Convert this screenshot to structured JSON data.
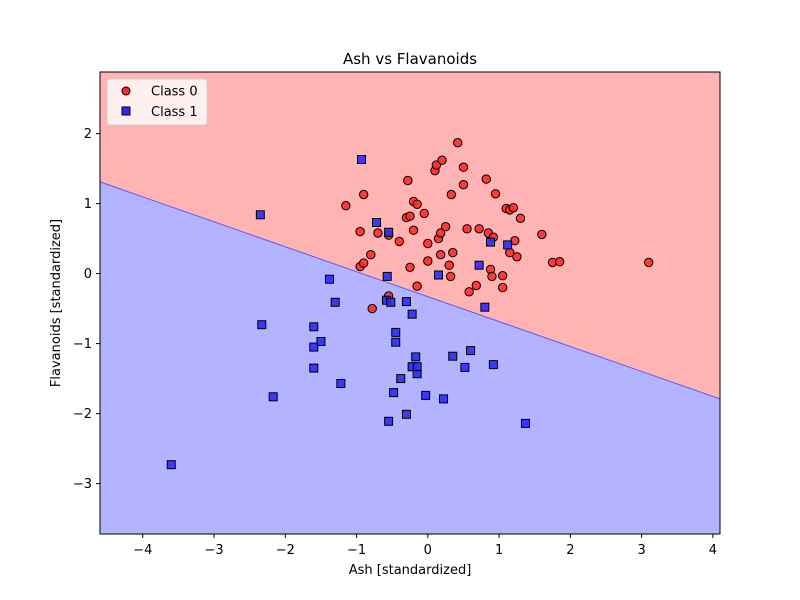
{
  "chart_data": {
    "type": "scatter",
    "title": "Ash vs Flavanoids",
    "xlabel": "Ash [standardized]",
    "ylabel": "Flavanoids [standardized]",
    "xlim": [
      -4.6,
      4.1
    ],
    "ylim": [
      -3.72,
      2.88
    ],
    "xticks": [
      -4,
      -3,
      -2,
      -1,
      0,
      1,
      2,
      3,
      4
    ],
    "yticks": [
      -3,
      -2,
      -1,
      0,
      1,
      2
    ],
    "xtick_labels": [
      "−4",
      "−3",
      "−2",
      "−1",
      "0",
      "1",
      "2",
      "3",
      "4"
    ],
    "ytick_labels": [
      "−3",
      "−2",
      "−1",
      "0",
      "1",
      "2"
    ],
    "grid": false,
    "legend_position": "top-left",
    "decision_boundary": {
      "points": [
        [
          -4.6,
          1.31
        ],
        [
          4.1,
          -1.79
        ]
      ],
      "region_above": "Class 0",
      "region_below": "Class 1",
      "region_above_color": "#ffb3b3",
      "region_below_color": "#b3b3ff",
      "line_color": "#5a5aff"
    },
    "series": [
      {
        "name": "Class 0",
        "marker": "circle",
        "color": "#ff2a2a",
        "points": [
          [
            -1.15,
            0.97
          ],
          [
            -0.9,
            1.13
          ],
          [
            -0.95,
            0.6
          ],
          [
            -0.95,
            0.1
          ],
          [
            -0.9,
            0.15
          ],
          [
            -0.8,
            0.27
          ],
          [
            -0.7,
            0.58
          ],
          [
            -0.78,
            -0.5
          ],
          [
            -0.55,
            -0.32
          ],
          [
            -0.55,
            0.55
          ],
          [
            -0.4,
            0.46
          ],
          [
            -0.3,
            0.8
          ],
          [
            -0.28,
            1.33
          ],
          [
            -0.25,
            0.82
          ],
          [
            -0.2,
            1.03
          ],
          [
            -0.15,
            0.99
          ],
          [
            -0.05,
            0.86
          ],
          [
            -0.2,
            0.62
          ],
          [
            -0.25,
            0.09
          ],
          [
            -0.15,
            -0.18
          ],
          [
            0.0,
            0.43
          ],
          [
            0.0,
            0.18
          ],
          [
            0.1,
            1.47
          ],
          [
            0.12,
            1.55
          ],
          [
            0.15,
            0.5
          ],
          [
            0.18,
            0.58
          ],
          [
            0.18,
            0.27
          ],
          [
            0.2,
            1.62
          ],
          [
            0.25,
            0.67
          ],
          [
            0.3,
            0.12
          ],
          [
            0.32,
            -0.04
          ],
          [
            0.33,
            1.13
          ],
          [
            0.35,
            0.3
          ],
          [
            0.42,
            1.87
          ],
          [
            0.5,
            1.52
          ],
          [
            0.5,
            1.27
          ],
          [
            0.55,
            0.64
          ],
          [
            0.58,
            -0.26
          ],
          [
            0.68,
            -0.17
          ],
          [
            0.72,
            0.64
          ],
          [
            0.82,
            1.35
          ],
          [
            0.85,
            0.58
          ],
          [
            0.88,
            0.06
          ],
          [
            0.9,
            -0.04
          ],
          [
            0.92,
            0.52
          ],
          [
            0.95,
            1.14
          ],
          [
            1.05,
            -0.03
          ],
          [
            1.05,
            -0.2
          ],
          [
            1.1,
            0.93
          ],
          [
            1.15,
            0.91
          ],
          [
            1.15,
            0.3
          ],
          [
            1.2,
            0.94
          ],
          [
            1.22,
            0.47
          ],
          [
            1.25,
            0.24
          ],
          [
            1.3,
            0.79
          ],
          [
            1.6,
            0.56
          ],
          [
            1.75,
            0.16
          ],
          [
            1.85,
            0.17
          ],
          [
            3.1,
            0.16
          ]
        ]
      },
      {
        "name": "Class 1",
        "marker": "square",
        "color": "#2a2aff",
        "points": [
          [
            -3.6,
            -2.73
          ],
          [
            -2.35,
            0.84
          ],
          [
            -2.33,
            -0.73
          ],
          [
            -2.17,
            -1.76
          ],
          [
            -1.6,
            -0.76
          ],
          [
            -1.6,
            -1.05
          ],
          [
            -1.6,
            -1.35
          ],
          [
            -1.5,
            -0.97
          ],
          [
            -1.38,
            -0.08
          ],
          [
            -1.3,
            -0.41
          ],
          [
            -1.22,
            -1.57
          ],
          [
            -0.93,
            1.63
          ],
          [
            -0.72,
            0.73
          ],
          [
            -0.58,
            -0.38
          ],
          [
            -0.57,
            -0.04
          ],
          [
            -0.55,
            0.59
          ],
          [
            -0.52,
            -0.41
          ],
          [
            -0.48,
            -1.7
          ],
          [
            -0.45,
            -0.84
          ],
          [
            -0.45,
            -0.98
          ],
          [
            -0.38,
            -1.5
          ],
          [
            -0.3,
            -0.4
          ],
          [
            -0.3,
            -2.01
          ],
          [
            -0.22,
            -0.58
          ],
          [
            -0.22,
            -1.33
          ],
          [
            -0.17,
            -1.19
          ],
          [
            -0.15,
            -1.43
          ],
          [
            -0.15,
            -1.33
          ],
          [
            -0.55,
            -2.11
          ],
          [
            -0.03,
            -1.74
          ],
          [
            0.15,
            -0.02
          ],
          [
            0.22,
            -1.79
          ],
          [
            0.35,
            -1.18
          ],
          [
            0.52,
            -1.34
          ],
          [
            0.6,
            -1.1
          ],
          [
            0.72,
            0.12
          ],
          [
            0.8,
            -0.48
          ],
          [
            0.88,
            0.45
          ],
          [
            0.92,
            -1.3
          ],
          [
            1.12,
            0.41
          ],
          [
            1.37,
            -2.14
          ]
        ]
      }
    ]
  }
}
